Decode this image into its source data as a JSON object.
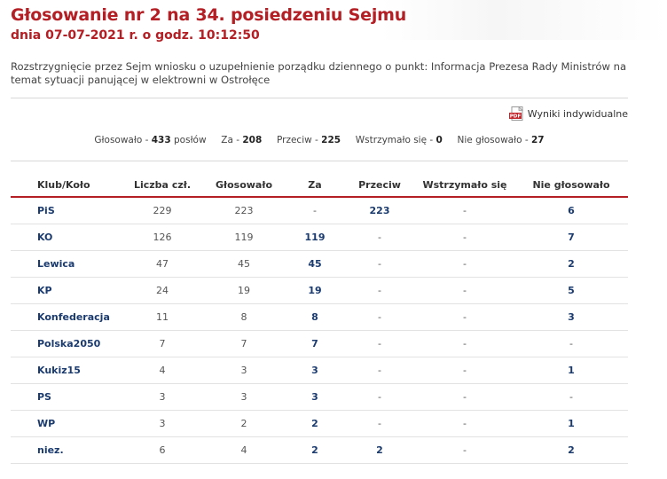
{
  "header": {
    "title": "Głosowanie nr 2 na 34. posiedzeniu Sejmu",
    "date": "dnia 07-07-2021 r. o godz. 10:12:50"
  },
  "description": "Rozstrzygnięcie przez Sejm wniosku o uzupełnienie porządku dziennego o punkt: Informacja Prezesa Rady Ministrów na temat sytuacji panującej w elektrowni w Ostrołęce",
  "pdf_link": {
    "icon": "pdf-icon",
    "label": "Wyniki indywidualne"
  },
  "summary": {
    "voted_label": "Głosowało -",
    "voted": "433",
    "mps_label": "posłów",
    "for_label": "Za -",
    "for": "208",
    "against_label": "Przeciw -",
    "against": "225",
    "abstain_label": "Wstrzymało się -",
    "abstain": "0",
    "absent_label": "Nie głosowało -",
    "absent": "27"
  },
  "table": {
    "headers": [
      "Klub/Koło",
      "Liczba czł.",
      "Głosowało",
      "Za",
      "Przeciw",
      "Wstrzymało się",
      "Nie głosowało"
    ],
    "rows": [
      [
        "PiS",
        "229",
        "223",
        "-",
        "223",
        "-",
        "6"
      ],
      [
        "KO",
        "126",
        "119",
        "119",
        "-",
        "-",
        "7"
      ],
      [
        "Lewica",
        "47",
        "45",
        "45",
        "-",
        "-",
        "2"
      ],
      [
        "KP",
        "24",
        "19",
        "19",
        "-",
        "-",
        "5"
      ],
      [
        "Konfederacja",
        "11",
        "8",
        "8",
        "-",
        "-",
        "3"
      ],
      [
        "Polska2050",
        "7",
        "7",
        "7",
        "-",
        "-",
        "-"
      ],
      [
        "Kukiz15",
        "4",
        "3",
        "3",
        "-",
        "-",
        "1"
      ],
      [
        "PS",
        "3",
        "3",
        "3",
        "-",
        "-",
        "-"
      ],
      [
        "WP",
        "3",
        "2",
        "2",
        "-",
        "-",
        "1"
      ],
      [
        "niez.",
        "6",
        "4",
        "2",
        "2",
        "-",
        "2"
      ]
    ]
  },
  "colors": {
    "title_red": "#b31f24",
    "link_blue": "#1b3b6f"
  }
}
